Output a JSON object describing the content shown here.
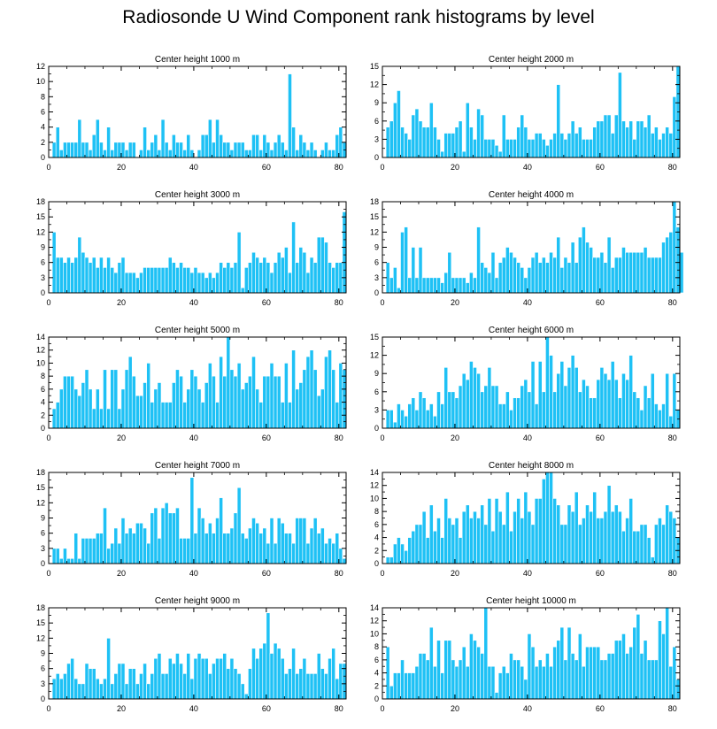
{
  "title": "Radiosonde U Wind Component rank histograms by level",
  "colors": {
    "bar": "#1ec1f5",
    "bar_edge": "#ffffff",
    "frame": "#000000"
  },
  "chart_data": [
    {
      "type": "bar",
      "title": "Center height 1000 m",
      "xlim": [
        0,
        82
      ],
      "xticks": [
        0,
        20,
        40,
        60,
        80
      ],
      "ylim": [
        0,
        12
      ],
      "yticks": [
        0,
        2,
        4,
        6,
        8,
        10,
        12
      ],
      "values": [
        0,
        2,
        4,
        1,
        2,
        2,
        2,
        2,
        5,
        2,
        2,
        1,
        3,
        5,
        2,
        1,
        4,
        1,
        2,
        2,
        2,
        1,
        2,
        2,
        0,
        1,
        4,
        1,
        2,
        3,
        1,
        5,
        2,
        1,
        3,
        2,
        2,
        1,
        3,
        1,
        0,
        1,
        3,
        3,
        5,
        2,
        5,
        3,
        2,
        2,
        1,
        2,
        2,
        2,
        1,
        1,
        3,
        3,
        1,
        3,
        2,
        1,
        2,
        3,
        2,
        1,
        11,
        4,
        1,
        3,
        2,
        1,
        2,
        1,
        0,
        1,
        2,
        1,
        1,
        3,
        4,
        2
      ]
    },
    {
      "type": "bar",
      "title": "Center height 2000 m",
      "xlim": [
        0,
        82
      ],
      "xticks": [
        0,
        20,
        40,
        60,
        80
      ],
      "ylim": [
        0,
        15
      ],
      "yticks": [
        0,
        3,
        6,
        9,
        12,
        15
      ],
      "values": [
        0,
        5,
        6,
        9,
        11,
        5,
        4,
        3,
        7,
        8,
        6,
        5,
        5,
        9,
        5,
        3,
        1,
        4,
        4,
        4,
        5,
        6,
        1,
        9,
        5,
        3,
        8,
        7,
        3,
        3,
        3,
        2,
        1,
        7,
        3,
        3,
        3,
        5,
        7,
        5,
        3,
        3,
        4,
        4,
        3,
        2,
        3,
        4,
        12,
        4,
        3,
        4,
        6,
        4,
        5,
        3,
        3,
        3,
        5,
        6,
        6,
        7,
        7,
        4,
        7,
        14,
        6,
        5,
        6,
        3,
        6,
        6,
        5,
        7,
        4,
        5,
        3,
        4,
        5,
        4,
        10,
        15
      ]
    },
    {
      "type": "bar",
      "title": "Center height 3000 m",
      "xlim": [
        0,
        82
      ],
      "xticks": [
        0,
        20,
        40,
        60,
        80
      ],
      "ylim": [
        0,
        18
      ],
      "yticks": [
        0,
        3,
        6,
        9,
        12,
        15,
        18
      ],
      "values": [
        0,
        12,
        7,
        7,
        6,
        7,
        6,
        7,
        11,
        8,
        7,
        6,
        7,
        5,
        7,
        5,
        7,
        5,
        4,
        6,
        7,
        4,
        4,
        4,
        3,
        4,
        5,
        5,
        5,
        5,
        5,
        5,
        5,
        7,
        6,
        5,
        6,
        5,
        5,
        4,
        5,
        4,
        4,
        3,
        4,
        3,
        4,
        6,
        5,
        6,
        5,
        6,
        12,
        1,
        5,
        6,
        8,
        7,
        6,
        7,
        6,
        4,
        6,
        8,
        7,
        9,
        4,
        14,
        6,
        9,
        8,
        4,
        7,
        6,
        11,
        11,
        10,
        6,
        5,
        6,
        6,
        16
      ]
    },
    {
      "type": "bar",
      "title": "Center height 4000 m",
      "xlim": [
        0,
        82
      ],
      "xticks": [
        0,
        20,
        40,
        60,
        80
      ],
      "ylim": [
        0,
        18
      ],
      "yticks": [
        0,
        3,
        6,
        9,
        12,
        15,
        18
      ],
      "values": [
        0,
        6,
        3,
        5,
        1,
        12,
        13,
        3,
        9,
        3,
        9,
        3,
        3,
        3,
        3,
        3,
        2,
        4,
        8,
        3,
        3,
        3,
        3,
        2,
        4,
        3,
        13,
        6,
        5,
        4,
        8,
        3,
        6,
        7,
        9,
        8,
        7,
        6,
        5,
        3,
        5,
        7,
        8,
        6,
        7,
        6,
        8,
        7,
        11,
        5,
        7,
        6,
        10,
        6,
        11,
        13,
        10,
        9,
        7,
        7,
        8,
        6,
        11,
        5,
        7,
        7,
        9,
        8,
        8,
        8,
        8,
        8,
        9,
        7,
        7,
        7,
        7,
        10,
        11,
        12,
        18,
        13,
        8
      ]
    },
    {
      "type": "bar",
      "title": "Center height 5000 m",
      "xlim": [
        0,
        82
      ],
      "xticks": [
        0,
        20,
        40,
        60,
        80
      ],
      "ylim": [
        0,
        14
      ],
      "yticks": [
        0,
        2,
        4,
        6,
        8,
        10,
        12,
        14
      ],
      "values": [
        0,
        3,
        4,
        6,
        8,
        8,
        8,
        6,
        5,
        7,
        9,
        6,
        3,
        6,
        3,
        9,
        3,
        9,
        9,
        3,
        6,
        9,
        11,
        8,
        5,
        5,
        7,
        10,
        4,
        6,
        7,
        4,
        4,
        4,
        7,
        9,
        8,
        4,
        6,
        9,
        8,
        6,
        4,
        7,
        10,
        8,
        4,
        11,
        8,
        14,
        9,
        8,
        10,
        6,
        7,
        8,
        11,
        6,
        4,
        8,
        8,
        10,
        8,
        8,
        4,
        10,
        4,
        12,
        6,
        7,
        9,
        11,
        12,
        9,
        5,
        6,
        11,
        12,
        9,
        4,
        10,
        9
      ]
    },
    {
      "type": "bar",
      "title": "Center height 6000 m",
      "xlim": [
        0,
        82
      ],
      "xticks": [
        0,
        20,
        40,
        60,
        80
      ],
      "ylim": [
        0,
        15
      ],
      "yticks": [
        0,
        3,
        6,
        9,
        12,
        15
      ],
      "values": [
        0,
        3,
        3,
        1,
        4,
        3,
        2,
        4,
        5,
        3,
        6,
        5,
        3,
        4,
        2,
        6,
        4,
        10,
        6,
        6,
        5,
        7,
        9,
        8,
        11,
        10,
        9,
        6,
        7,
        10,
        7,
        7,
        4,
        4,
        6,
        3,
        5,
        5,
        7,
        8,
        6,
        11,
        4,
        11,
        6,
        15,
        12,
        6,
        9,
        11,
        7,
        10,
        12,
        10,
        6,
        8,
        7,
        5,
        5,
        8,
        10,
        9,
        8,
        11,
        8,
        5,
        9,
        8,
        12,
        6,
        5,
        3,
        7,
        5,
        9,
        4,
        3,
        4,
        9,
        2,
        9,
        3
      ]
    },
    {
      "type": "bar",
      "title": "Center height 7000 m",
      "xlim": [
        0,
        82
      ],
      "xticks": [
        0,
        20,
        40,
        60,
        80
      ],
      "ylim": [
        0,
        18
      ],
      "yticks": [
        0,
        3,
        6,
        9,
        12,
        15,
        18
      ],
      "values": [
        0,
        3,
        3,
        1,
        3,
        1,
        1,
        6,
        1,
        5,
        5,
        5,
        5,
        6,
        6,
        11,
        3,
        4,
        7,
        4,
        9,
        6,
        7,
        6,
        8,
        8,
        7,
        4,
        10,
        11,
        5,
        11,
        12,
        10,
        10,
        11,
        5,
        5,
        5,
        17,
        6,
        11,
        9,
        6,
        8,
        6,
        9,
        13,
        6,
        6,
        7,
        10,
        15,
        6,
        5,
        7,
        9,
        8,
        6,
        7,
        4,
        9,
        4,
        9,
        8,
        6,
        6,
        4,
        9,
        9,
        9,
        4,
        7,
        9,
        6,
        7,
        4,
        5,
        4,
        6,
        3,
        1
      ]
    },
    {
      "type": "bar",
      "title": "Center height 8000 m",
      "xlim": [
        0,
        82
      ],
      "xticks": [
        0,
        20,
        40,
        60,
        80
      ],
      "ylim": [
        0,
        14
      ],
      "yticks": [
        0,
        2,
        4,
        6,
        8,
        10,
        12,
        14
      ],
      "values": [
        0,
        1,
        1,
        3,
        4,
        3,
        2,
        4,
        5,
        6,
        6,
        8,
        4,
        9,
        5,
        7,
        4,
        10,
        7,
        6,
        7,
        4,
        8,
        9,
        7,
        8,
        7,
        9,
        6,
        10,
        5,
        10,
        8,
        6,
        11,
        5,
        8,
        10,
        7,
        11,
        8,
        6,
        10,
        10,
        13,
        14,
        14,
        10,
        9,
        6,
        6,
        9,
        8,
        11,
        6,
        7,
        9,
        8,
        11,
        7,
        7,
        8,
        12,
        8,
        9,
        8,
        5,
        7,
        10,
        5,
        5,
        6,
        6,
        4,
        1,
        6,
        7,
        6,
        9,
        8,
        7,
        4
      ]
    },
    {
      "type": "bar",
      "title": "Center height 9000 m",
      "xlim": [
        0,
        82
      ],
      "xticks": [
        0,
        20,
        40,
        60,
        80
      ],
      "ylim": [
        0,
        18
      ],
      "yticks": [
        0,
        3,
        6,
        9,
        12,
        15,
        18
      ],
      "values": [
        0,
        4,
        5,
        4,
        5,
        7,
        8,
        4,
        3,
        3,
        7,
        6,
        6,
        4,
        3,
        4,
        12,
        3,
        5,
        7,
        7,
        3,
        6,
        6,
        3,
        5,
        7,
        3,
        5,
        8,
        9,
        5,
        5,
        8,
        7,
        9,
        7,
        5,
        9,
        4,
        8,
        9,
        8,
        8,
        5,
        7,
        8,
        8,
        9,
        6,
        8,
        6,
        5,
        3,
        1,
        6,
        10,
        8,
        10,
        11,
        17,
        9,
        11,
        10,
        8,
        5,
        6,
        10,
        5,
        6,
        8,
        5,
        5,
        5,
        9,
        6,
        5,
        8,
        10,
        4,
        7,
        7
      ]
    },
    {
      "type": "bar",
      "title": "Center height 10000 m",
      "xlim": [
        0,
        82
      ],
      "xticks": [
        0,
        20,
        40,
        60,
        80
      ],
      "ylim": [
        0,
        14
      ],
      "yticks": [
        0,
        2,
        4,
        6,
        8,
        10,
        12,
        14
      ],
      "values": [
        0,
        8,
        2,
        4,
        4,
        6,
        4,
        4,
        4,
        5,
        7,
        7,
        6,
        11,
        5,
        9,
        4,
        9,
        9,
        6,
        5,
        6,
        8,
        5,
        10,
        9,
        8,
        7,
        14,
        5,
        5,
        1,
        4,
        5,
        4,
        7,
        6,
        6,
        5,
        3,
        10,
        8,
        5,
        6,
        5,
        7,
        5,
        8,
        9,
        11,
        6,
        11,
        7,
        6,
        10,
        5,
        8,
        8,
        8,
        8,
        6,
        6,
        7,
        7,
        9,
        9,
        10,
        7,
        8,
        11,
        13,
        7,
        9,
        6,
        6,
        6,
        12,
        10,
        14,
        5,
        8,
        3
      ]
    }
  ]
}
